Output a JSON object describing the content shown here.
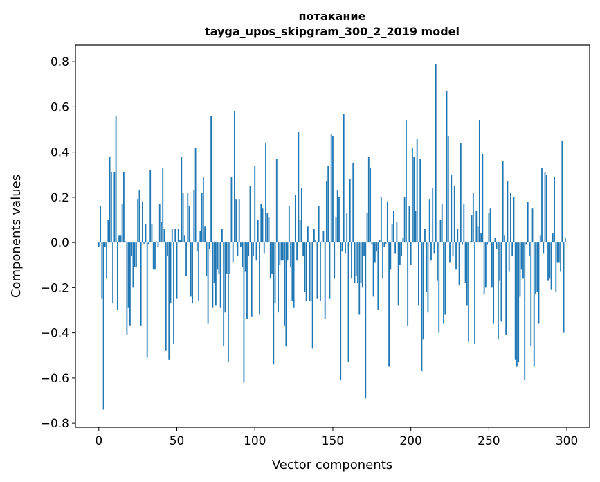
{
  "chart_data": {
    "type": "bar",
    "title": "потакание",
    "subtitle": "tayga_upos_skipgram_300_2_2019 model",
    "xlabel": "Vector components",
    "ylabel": "Components values",
    "xlim": [
      -15,
      314.6
    ],
    "ylim": [
      -0.818,
      0.874
    ],
    "xticks": [
      0,
      50,
      100,
      150,
      200,
      250,
      300
    ],
    "xtick_labels": [
      "0",
      "50",
      "100",
      "150",
      "200",
      "250",
      "300"
    ],
    "yticks": [
      -0.8,
      -0.6,
      -0.4,
      -0.2,
      0,
      0.2,
      0.4,
      0.6,
      0.8
    ],
    "ytick_labels": [
      "−0.8",
      "−0.6",
      "−0.4",
      "−0.2",
      "0.0",
      "0.2",
      "0.4",
      "0.6",
      "0.8"
    ],
    "color": "#1f77b4",
    "grid": false,
    "values": [
      -0.02,
      0.16,
      -0.25,
      -0.74,
      -0.02,
      -0.16,
      0.1,
      0.38,
      0.31,
      -0.27,
      0.31,
      0.56,
      -0.3,
      0.03,
      0.03,
      0.17,
      0.31,
      0.005,
      -0.41,
      -0.29,
      -0.37,
      -0.06,
      -0.2,
      -0.11,
      -0.11,
      0.19,
      0.23,
      -0.37,
      0.18,
      -0.005,
      0.08,
      -0.51,
      -0.01,
      0.32,
      0.08,
      -0.12,
      -0.12,
      0.005,
      -0.02,
      0.17,
      0.09,
      0.33,
      0.06,
      -0.48,
      -0.06,
      -0.52,
      -0.27,
      0.06,
      -0.45,
      0.06,
      -0.25,
      0.06,
      0.01,
      0.38,
      0.22,
      0.03,
      -0.15,
      0.22,
      0.16,
      -0.24,
      -0.27,
      0.23,
      0.42,
      -0.04,
      -0.26,
      0.05,
      0.22,
      0.29,
      0.07,
      -0.15,
      -0.36,
      -0.03,
      0.56,
      -0.29,
      -0.18,
      -0.28,
      -0.12,
      -0.14,
      -0.29,
      0.06,
      -0.46,
      -0.31,
      -0.14,
      -0.53,
      -0.14,
      0.29,
      -0.09,
      0.58,
      0.19,
      -0.06,
      0.19,
      -0.02,
      -0.11,
      -0.62,
      -0.13,
      -0.34,
      -0.06,
      0.25,
      -0.33,
      -0.06,
      0.34,
      -0.08,
      0.1,
      -0.32,
      0.17,
      0.15,
      -0.05,
      0.44,
      0.13,
      0.11,
      -0.16,
      -0.14,
      -0.54,
      -0.27,
      0.37,
      -0.31,
      -0.1,
      -0.08,
      -0.08,
      -0.37,
      -0.46,
      -0.08,
      0.16,
      -0.11,
      -0.26,
      -0.29,
      0.21,
      -0.08,
      0.49,
      0.1,
      0.24,
      -0.06,
      -0.22,
      -0.26,
      0.07,
      -0.26,
      -0.26,
      -0.47,
      0.06,
      0.01,
      -0.25,
      0.16,
      -0.26,
      0.005,
      0.05,
      -0.34,
      0.27,
      0.34,
      -0.25,
      0.48,
      0.47,
      -0.16,
      0.11,
      0.23,
      0.2,
      -0.61,
      -0.04,
      0.57,
      -0.05,
      0.13,
      -0.53,
      0.28,
      -0.16,
      0.35,
      -0.18,
      -0.15,
      -0.18,
      -0.32,
      -0.18,
      -0.2,
      -0.06,
      -0.69,
      0.13,
      0.38,
      0.33,
      -0.01,
      -0.24,
      -0.09,
      -0.04,
      -0.3,
      0.01,
      0.2,
      -0.16,
      -0.02,
      -0.005,
      0.18,
      -0.55,
      -0.12,
      0.08,
      0.14,
      -0.05,
      0.09,
      -0.28,
      -0.1,
      -0.06,
      0.02,
      0.2,
      0.54,
      -0.37,
      0.16,
      -0.1,
      0.42,
      0.38,
      0.14,
      0.46,
      -0.28,
      0.37,
      -0.57,
      -0.43,
      0.06,
      -0.22,
      -0.31,
      0.19,
      -0.08,
      0.24,
      -0.05,
      0.79,
      -0.17,
      -0.4,
      0.1,
      0.17,
      -0.36,
      -0.32,
      0.67,
      0.47,
      -0.09,
      0.3,
      -0.06,
      0.25,
      -0.12,
      0.06,
      -0.19,
      0.44,
      -0.01,
      0.17,
      -0.18,
      -0.28,
      -0.44,
      0.005,
      0.12,
      0.22,
      -0.45,
      0.14,
      0.07,
      0.54,
      0.04,
      0.39,
      -0.23,
      -0.2,
      -0.01,
      0.13,
      0.15,
      -0.2,
      -0.36,
      0.02,
      -0.03,
      -0.43,
      -0.17,
      -0.35,
      0.36,
      0.03,
      -0.41,
      0.27,
      -0.13,
      0.22,
      -0.06,
      0.2,
      -0.52,
      -0.55,
      -0.53,
      -0.24,
      -0.12,
      -0.16,
      -0.61,
      -0.01,
      0.18,
      -0.06,
      -0.46,
      0.15,
      -0.55,
      -0.23,
      -0.22,
      -0.36,
      0.03,
      0.33,
      -0.05,
      0.31,
      0.3,
      -0.17,
      -0.16,
      -0.21,
      0.04,
      0.29,
      -0.22,
      -0.09,
      -0.09,
      -0.13,
      0.45,
      -0.4,
      0.02
    ]
  }
}
